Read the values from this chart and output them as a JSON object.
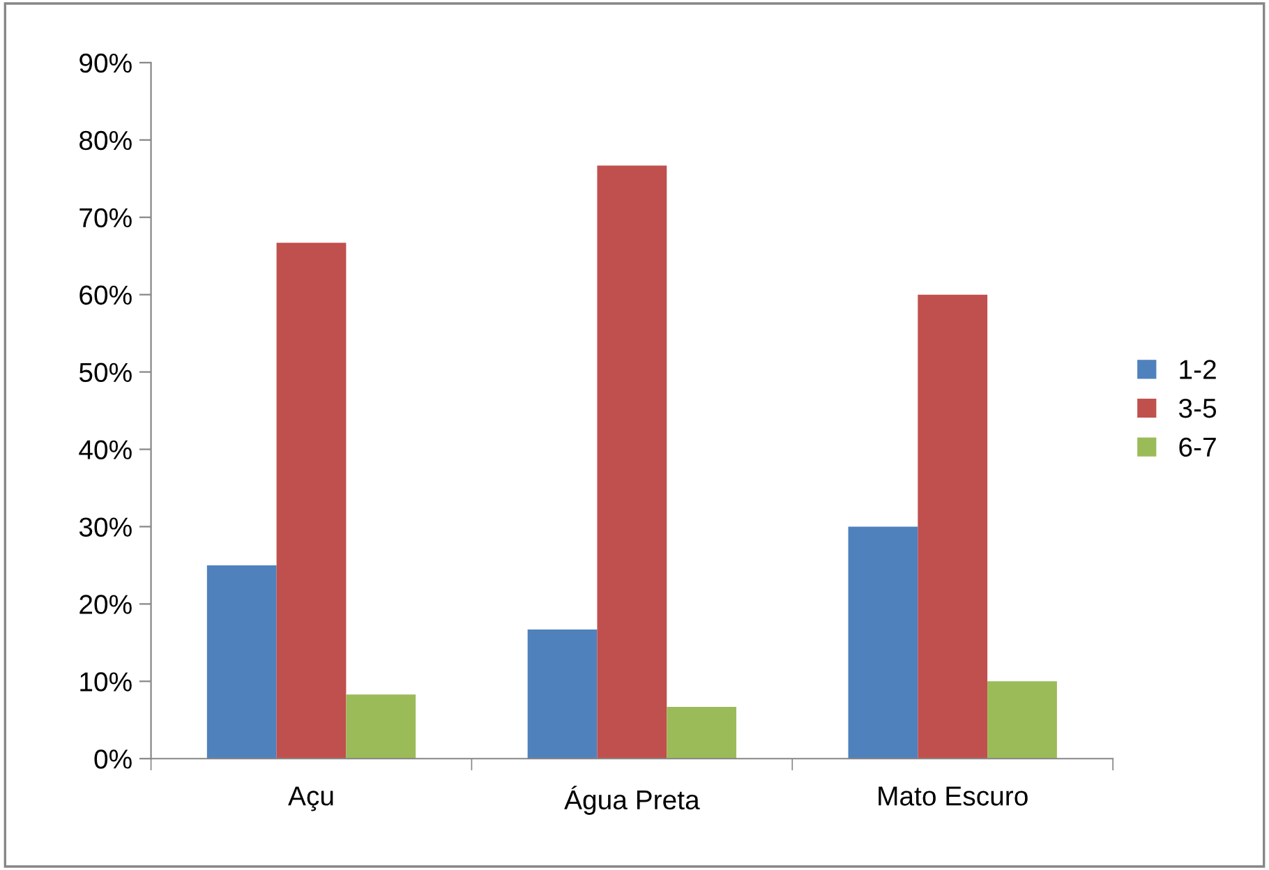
{
  "chart_data": {
    "type": "bar",
    "categories": [
      "Açu",
      "Água Preta",
      "Mato Escuro"
    ],
    "series": [
      {
        "name": "1-2",
        "color": "#4f81bd",
        "values": [
          25,
          16.7,
          30
        ]
      },
      {
        "name": "3-5",
        "color": "#c0504d",
        "values": [
          66.7,
          76.7,
          60
        ]
      },
      {
        "name": "6-7",
        "color": "#9bbb59",
        "values": [
          8.3,
          6.7,
          10
        ]
      }
    ],
    "ylim": [
      0,
      90
    ],
    "yticks": [
      {
        "value": 0,
        "label": "0%"
      },
      {
        "value": 10,
        "label": "10%"
      },
      {
        "value": 20,
        "label": "20%"
      },
      {
        "value": 30,
        "label": "30%"
      },
      {
        "value": 40,
        "label": "40%"
      },
      {
        "value": 50,
        "label": "50%"
      },
      {
        "value": 60,
        "label": "60%"
      },
      {
        "value": 70,
        "label": "70%"
      },
      {
        "value": 80,
        "label": "80%"
      },
      {
        "value": 90,
        "label": "90%"
      }
    ],
    "grid": false,
    "legend": "right"
  }
}
